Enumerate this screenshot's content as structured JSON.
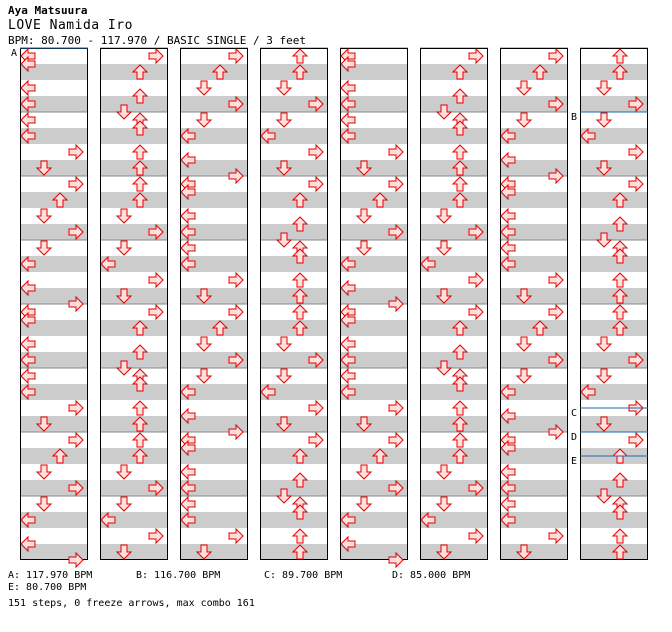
{
  "header": {
    "artist": "Aya Matsuura",
    "title": "LOVE Namida Iro",
    "meta": "BPM: 80.700 - 117.970 / BASIC SINGLE / 3 feet"
  },
  "chart_data": {
    "type": "step-chart",
    "columns": 8,
    "measures_per_column": 8,
    "rows_per_measure": 8,
    "lanes": [
      "left",
      "down",
      "up",
      "right"
    ],
    "notes_per_measure_rows": [
      [
        [
          0,
          3
        ],
        [
          0,
          3
        ],
        [
          0,
          0
        ],
        [
          0,
          1
        ],
        [
          0,
          2
        ],
        [
          3,
          1
        ],
        [
          2,
          0
        ],
        [
          2,
          1
        ]
      ]
    ],
    "bpm_markers": [
      {
        "label": "A",
        "measure": 0,
        "row": 0
      },
      {
        "label": "B",
        "measure": 57,
        "row": 0
      },
      {
        "label": "C",
        "measure": 61,
        "row": 5
      },
      {
        "label": "D",
        "measure": 62,
        "row": 0
      },
      {
        "label": "E",
        "measure": 62,
        "row": 3
      }
    ]
  },
  "legend": {
    "a": "A: 117.970 BPM",
    "b": "B: 116.700 BPM",
    "c": "C: 89.700 BPM",
    "d": "D: 85.000 BPM",
    "e": "E: 80.700 BPM"
  },
  "summary": "151 steps, 0 freeze arrows, max combo 161",
  "colors": {
    "stripe": "#cccccc",
    "arrow_fill": "#ffdede",
    "arrow_stroke": "#e00000",
    "border": "#000000",
    "bpm_line": "#2266aa"
  }
}
